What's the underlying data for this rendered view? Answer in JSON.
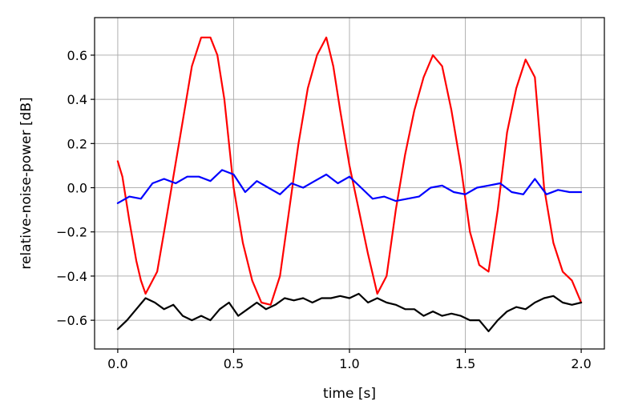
{
  "chart_data": {
    "type": "line",
    "title": "",
    "xlabel": "time [s]",
    "ylabel": "relative-noise-power [dB]",
    "xlim": [
      -0.1,
      2.1
    ],
    "ylim": [
      -0.73,
      0.77
    ],
    "xticks": [
      0.0,
      0.5,
      1.0,
      1.5,
      2.0
    ],
    "xtick_labels": [
      "0.0",
      "0.5",
      "1.0",
      "1.5",
      "2.0"
    ],
    "yticks": [
      -0.6,
      -0.4,
      -0.2,
      0.0,
      0.2,
      0.4,
      0.6
    ],
    "ytick_labels": [
      "−0.6",
      "−0.4",
      "−0.2",
      "0.0",
      "0.2",
      "0.4",
      "0.6"
    ],
    "grid": true,
    "legend": "none",
    "series": [
      {
        "color": "#ff0000",
        "x": [
          0.0,
          0.02,
          0.05,
          0.08,
          0.1,
          0.12,
          0.14,
          0.17,
          0.2,
          0.24,
          0.28,
          0.32,
          0.36,
          0.4,
          0.43,
          0.46,
          0.5,
          0.54,
          0.58,
          0.62,
          0.66,
          0.7,
          0.74,
          0.78,
          0.82,
          0.86,
          0.9,
          0.93,
          0.96,
          1.0,
          1.04,
          1.08,
          1.12,
          1.16,
          1.2,
          1.24,
          1.28,
          1.32,
          1.36,
          1.4,
          1.44,
          1.48,
          1.52,
          1.56,
          1.6,
          1.64,
          1.68,
          1.72,
          1.76,
          1.8,
          1.84,
          1.88,
          1.92,
          1.96,
          2.0
        ],
        "y": [
          0.12,
          0.05,
          -0.15,
          -0.33,
          -0.42,
          -0.48,
          -0.44,
          -0.38,
          -0.2,
          0.05,
          0.3,
          0.55,
          0.68,
          0.68,
          0.6,
          0.4,
          0.0,
          -0.25,
          -0.42,
          -0.52,
          -0.53,
          -0.4,
          -0.1,
          0.2,
          0.45,
          0.6,
          0.68,
          0.55,
          0.35,
          0.1,
          -0.1,
          -0.3,
          -0.48,
          -0.4,
          -0.1,
          0.15,
          0.35,
          0.5,
          0.6,
          0.55,
          0.35,
          0.1,
          -0.2,
          -0.35,
          -0.38,
          -0.1,
          0.25,
          0.45,
          0.58,
          0.5,
          0.0,
          -0.25,
          -0.38,
          -0.42,
          -0.52
        ]
      },
      {
        "color": "#0000ff",
        "x": [
          0.0,
          0.05,
          0.1,
          0.15,
          0.2,
          0.25,
          0.3,
          0.35,
          0.4,
          0.45,
          0.5,
          0.55,
          0.6,
          0.65,
          0.7,
          0.75,
          0.8,
          0.85,
          0.9,
          0.95,
          1.0,
          1.05,
          1.1,
          1.15,
          1.2,
          1.25,
          1.3,
          1.35,
          1.4,
          1.45,
          1.5,
          1.55,
          1.6,
          1.65,
          1.7,
          1.75,
          1.8,
          1.85,
          1.9,
          1.95,
          2.0
        ],
        "y": [
          -0.07,
          -0.04,
          -0.05,
          0.02,
          0.04,
          0.02,
          0.05,
          0.05,
          0.03,
          0.08,
          0.06,
          -0.02,
          0.03,
          0.0,
          -0.03,
          0.02,
          0.0,
          0.03,
          0.06,
          0.02,
          0.05,
          0.0,
          -0.05,
          -0.04,
          -0.06,
          -0.05,
          -0.04,
          0.0,
          0.01,
          -0.02,
          -0.03,
          0.0,
          0.01,
          0.02,
          -0.02,
          -0.03,
          0.04,
          -0.03,
          -0.01,
          -0.02,
          -0.02
        ]
      },
      {
        "color": "#000000",
        "x": [
          0.0,
          0.04,
          0.08,
          0.12,
          0.16,
          0.2,
          0.24,
          0.28,
          0.32,
          0.36,
          0.4,
          0.44,
          0.48,
          0.52,
          0.56,
          0.6,
          0.64,
          0.68,
          0.72,
          0.76,
          0.8,
          0.84,
          0.88,
          0.92,
          0.96,
          1.0,
          1.04,
          1.08,
          1.12,
          1.16,
          1.2,
          1.24,
          1.28,
          1.32,
          1.36,
          1.4,
          1.44,
          1.48,
          1.52,
          1.56,
          1.6,
          1.64,
          1.68,
          1.72,
          1.76,
          1.8,
          1.84,
          1.88,
          1.92,
          1.96,
          2.0
        ],
        "y": [
          -0.64,
          -0.6,
          -0.55,
          -0.5,
          -0.52,
          -0.55,
          -0.53,
          -0.58,
          -0.6,
          -0.58,
          -0.6,
          -0.55,
          -0.52,
          -0.58,
          -0.55,
          -0.52,
          -0.55,
          -0.53,
          -0.5,
          -0.51,
          -0.5,
          -0.52,
          -0.5,
          -0.5,
          -0.49,
          -0.5,
          -0.48,
          -0.52,
          -0.5,
          -0.52,
          -0.53,
          -0.55,
          -0.55,
          -0.58,
          -0.56,
          -0.58,
          -0.57,
          -0.58,
          -0.6,
          -0.6,
          -0.65,
          -0.6,
          -0.56,
          -0.54,
          -0.55,
          -0.52,
          -0.5,
          -0.49,
          -0.52,
          -0.53,
          -0.52
        ]
      }
    ]
  }
}
